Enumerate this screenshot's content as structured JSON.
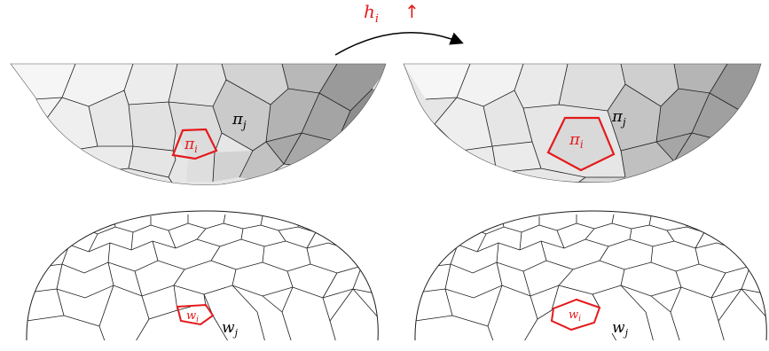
{
  "annotation": {
    "h_text": "h",
    "h_sub": "i",
    "arrow_glyph": "↑",
    "color": "#e41a1c"
  },
  "panels": {
    "left_top": {
      "highlight_label": "π",
      "highlight_sub": "i",
      "neighbor_label": "π",
      "neighbor_sub": "j"
    },
    "right_top": {
      "highlight_label": "π",
      "highlight_sub": "i",
      "neighbor_label": "π",
      "neighbor_sub": "j"
    },
    "left_bottom": {
      "highlight_label": "w",
      "highlight_sub": "i",
      "neighbor_label": "w",
      "neighbor_sub": "j"
    },
    "right_bottom": {
      "highlight_label": "w",
      "highlight_sub": "i",
      "neighbor_label": "w",
      "neighbor_sub": "j"
    }
  },
  "colors": {
    "highlight": "#e41a1c",
    "edge": "#1a1a1a",
    "face_light": "#f2f2f2",
    "face_dark": "#8a8a8a"
  }
}
